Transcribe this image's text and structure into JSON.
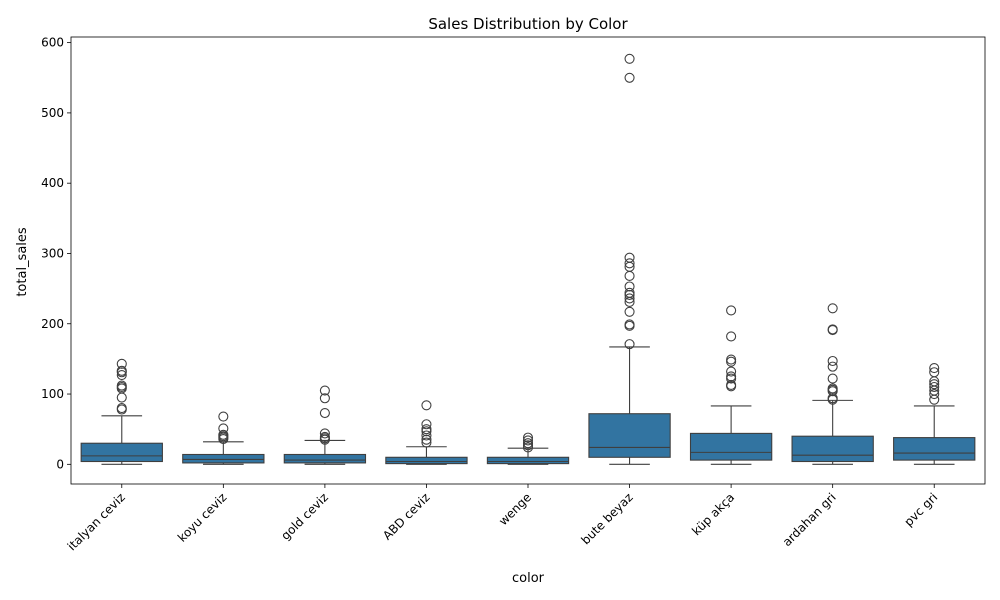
{
  "chart_data": {
    "type": "box",
    "title": "Sales Distribution by Color",
    "xlabel": "color",
    "ylabel": "total_sales",
    "ylim": [
      -28,
      608
    ],
    "yticks": [
      0,
      100,
      200,
      300,
      400,
      500,
      600
    ],
    "grid": false,
    "legend": "none",
    "box_color": "#3274a1",
    "line_color": "#3f3f3f",
    "categories": [
      "italyan ceviz",
      "koyu ceviz",
      "gold ceviz",
      "ABD ceviz",
      "wenge",
      "bute beyaz",
      "küp akça",
      "ardahan gri",
      "pvc gri"
    ],
    "boxes": [
      {
        "label": "italyan ceviz",
        "whislo": 0,
        "q1": 4,
        "med": 12,
        "q3": 30,
        "whishi": 69,
        "fliers": [
          78,
          80,
          95,
          108,
          110,
          112,
          127,
          131,
          133,
          143
        ]
      },
      {
        "label": "koyu ceviz",
        "whislo": 0,
        "q1": 2,
        "med": 7,
        "q3": 14,
        "whishi": 32,
        "fliers": [
          36,
          38,
          40,
          42,
          51,
          68
        ]
      },
      {
        "label": "gold ceviz",
        "whislo": 0,
        "q1": 2,
        "med": 6,
        "q3": 14,
        "whishi": 34,
        "fliers": [
          35,
          37,
          39,
          44,
          73,
          94,
          105
        ]
      },
      {
        "label": "ABD ceviz",
        "whislo": 0,
        "q1": 1,
        "med": 4,
        "q3": 10,
        "whishi": 25,
        "fliers": [
          31,
          35,
          41,
          47,
          50,
          57,
          84
        ]
      },
      {
        "label": "wenge",
        "whislo": 0,
        "q1": 1,
        "med": 4,
        "q3": 10,
        "whishi": 23,
        "fliers": [
          24,
          27,
          30,
          34,
          38
        ]
      },
      {
        "label": "bute beyaz",
        "whislo": 0,
        "q1": 10,
        "med": 24,
        "q3": 72,
        "whishi": 167,
        "fliers": [
          171,
          197,
          199,
          217,
          231,
          236,
          241,
          244,
          253,
          268,
          281,
          286,
          294,
          550,
          577
        ]
      },
      {
        "label": "küp akça",
        "whislo": 0,
        "q1": 6,
        "med": 17,
        "q3": 44,
        "whishi": 83,
        "fliers": [
          111,
          113,
          122,
          125,
          132,
          146,
          149,
          182,
          219
        ]
      },
      {
        "label": "ardahan gri",
        "whislo": 0,
        "q1": 4,
        "med": 13,
        "q3": 40,
        "whishi": 91,
        "fliers": [
          92,
          94,
          104,
          106,
          108,
          122,
          139,
          147,
          191,
          192,
          222
        ]
      },
      {
        "label": "pvc gri",
        "whislo": 0,
        "q1": 6,
        "med": 16,
        "q3": 38,
        "whishi": 83,
        "fliers": [
          92,
          100,
          105,
          110,
          114,
          118,
          131,
          137
        ]
      }
    ]
  }
}
